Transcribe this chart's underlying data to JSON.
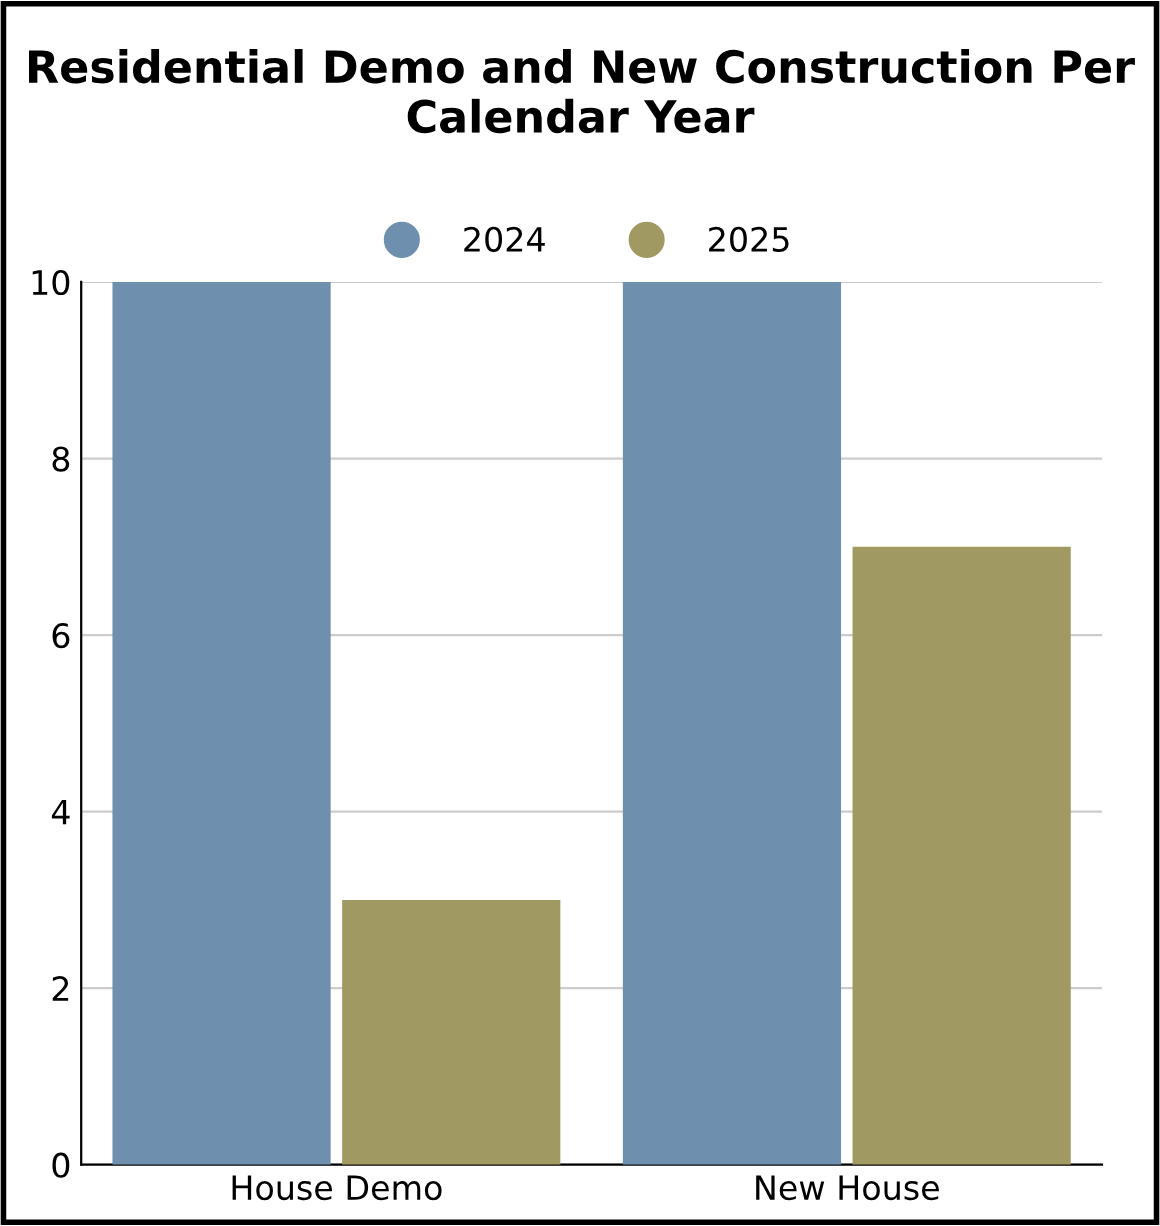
{
  "chart_data": {
    "type": "bar",
    "title": "Residential Demo and New Construction Per Calendar Year",
    "categories": [
      "House Demo",
      "New House"
    ],
    "series": [
      {
        "name": "2024",
        "color": "#6e8fae",
        "values": [
          10,
          10
        ]
      },
      {
        "name": "2025",
        "color": "#a09a62",
        "values": [
          3,
          7
        ]
      }
    ],
    "ylim": [
      0,
      10
    ],
    "yticks": [
      0,
      2,
      4,
      6,
      8,
      10
    ],
    "grid": "y",
    "legend": "top"
  }
}
